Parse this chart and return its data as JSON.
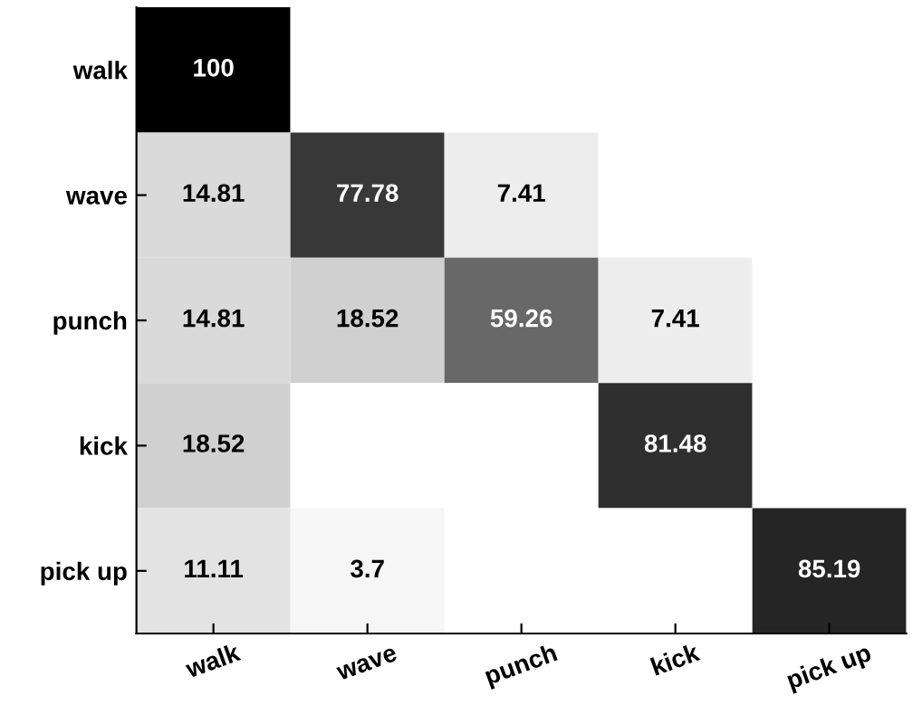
{
  "chart_data": {
    "type": "heatmap",
    "categories": [
      "walk",
      "wave",
      "punch",
      "kick",
      "pick up"
    ],
    "y_categories": [
      "walk",
      "wave",
      "punch",
      "kick",
      "pick up"
    ],
    "cells": [
      [
        100,
        null,
        null,
        null,
        null
      ],
      [
        14.81,
        77.78,
        7.41,
        null,
        null
      ],
      [
        14.81,
        18.52,
        59.26,
        7.41,
        null
      ],
      [
        18.52,
        null,
        null,
        81.48,
        null
      ],
      [
        11.11,
        3.7,
        null,
        null,
        85.19
      ]
    ],
    "data_labels": true
  }
}
